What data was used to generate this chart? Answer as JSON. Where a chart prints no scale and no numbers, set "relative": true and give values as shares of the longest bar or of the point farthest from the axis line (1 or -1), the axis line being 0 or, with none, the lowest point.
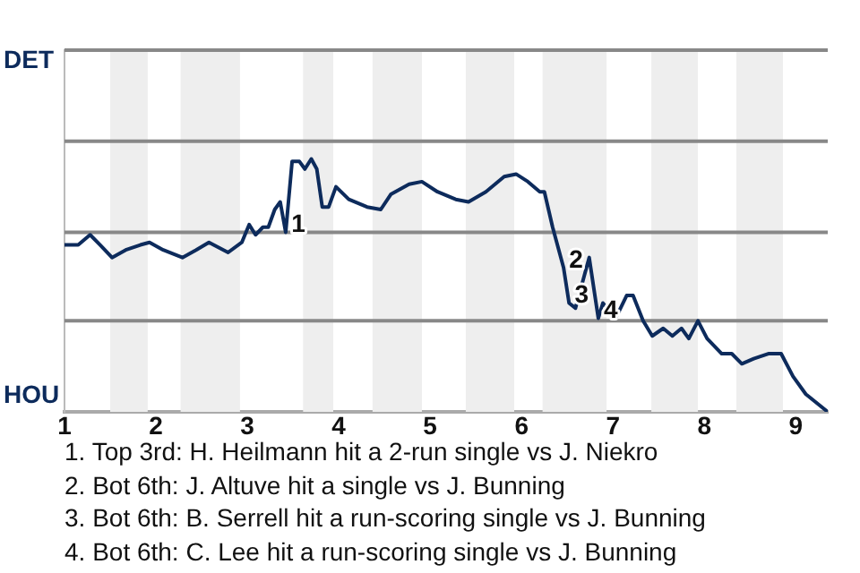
{
  "chart_data": {
    "type": "line",
    "relative": true,
    "x": [
      1,
      1.15,
      1.28,
      1.39,
      1.52,
      1.67,
      1.83,
      1.93,
      2.08,
      2.29,
      2.44,
      2.58,
      2.79,
      2.94,
      3.02,
      3.09,
      3.17,
      3.23,
      3.3,
      3.36,
      3.42,
      3.49,
      3.57,
      3.63,
      3.7,
      3.76,
      3.82,
      3.89,
      3.97,
      4.11,
      4.31,
      4.46,
      4.57,
      4.77,
      4.91,
      5.08,
      5.28,
      5.42,
      5.61,
      5.81,
      5.94,
      6.07,
      6.2,
      6.25,
      6.34,
      6.46,
      6.52,
      6.59,
      6.74,
      6.84,
      6.89,
      7.03,
      7.15,
      7.22,
      7.33,
      7.43,
      7.55,
      7.65,
      7.75,
      7.83,
      7.93,
      8.03,
      8.19,
      8.3,
      8.41,
      8.54,
      8.7,
      8.84,
      8.97,
      9.11,
      9.35
    ],
    "series": [
      {
        "color": "#0d2b5c",
        "values": [
          0.66,
          0.66,
          0.7,
          0.66,
          0.61,
          0.64,
          0.66,
          0.67,
          0.64,
          0.61,
          0.64,
          0.67,
          0.63,
          0.67,
          0.74,
          0.7,
          0.73,
          0.73,
          0.8,
          0.83,
          0.71,
          0.99,
          0.99,
          0.96,
          1,
          0.96,
          0.81,
          0.81,
          0.89,
          0.84,
          0.81,
          0.8,
          0.86,
          0.9,
          0.91,
          0.87,
          0.84,
          0.83,
          0.87,
          0.93,
          0.94,
          0.91,
          0.87,
          0.87,
          0.73,
          0.57,
          0.43,
          0.41,
          0.61,
          0.37,
          0.43,
          0.37,
          0.46,
          0.46,
          0.36,
          0.3,
          0.33,
          0.3,
          0.33,
          0.29,
          0.36,
          0.29,
          0.23,
          0.23,
          0.19,
          0.21,
          0.23,
          0.23,
          0.14,
          0.07,
          0
        ]
      }
    ],
    "xlim": [
      1,
      9.35
    ],
    "xticks": [
      1,
      2,
      3,
      4,
      5,
      6,
      7,
      8,
      9
    ],
    "marker": "none",
    "line_style": "solid",
    "legend": false,
    "ref_lines": [
      {
        "axis": "y",
        "value": 0.36,
        "label": null,
        "color": "#888888"
      },
      {
        "axis": "y",
        "value": 0.71,
        "label": null,
        "color": "#888888"
      },
      {
        "axis": "y",
        "value": 1.07,
        "label": null,
        "color": "#888888"
      },
      {
        "axis": "y",
        "value": 1.43,
        "label": "DET",
        "color": "#888888"
      }
    ],
    "bands": [
      {
        "axis": "x",
        "from": 1.5,
        "to": 1.91,
        "color": "#eeeeee"
      },
      {
        "axis": "x",
        "from": 2.27,
        "to": 2.92,
        "color": "#eeeeee"
      },
      {
        "axis": "x",
        "from": 3.61,
        "to": 3.94,
        "color": "#eeeeee"
      },
      {
        "axis": "x",
        "from": 4.37,
        "to": 4.91,
        "color": "#eeeeee"
      },
      {
        "axis": "x",
        "from": 5.39,
        "to": 5.92,
        "color": "#eeeeee"
      },
      {
        "axis": "x",
        "from": 6.23,
        "to": 6.93,
        "color": "#eeeeee"
      },
      {
        "axis": "x",
        "from": 7.42,
        "to": 7.93,
        "color": "#eeeeee"
      },
      {
        "axis": "x",
        "from": 8.35,
        "to": 8.86,
        "color": "#eeeeee"
      }
    ],
    "annotations": [
      "HOU",
      {
        "text": "1",
        "x": 3.42,
        "y": 0.71
      },
      {
        "text": "2",
        "x": 6.46,
        "y": 0.57
      },
      {
        "text": "3",
        "x": 6.52,
        "y": 0.43
      },
      {
        "text": "4",
        "x": 6.84,
        "y": 0.37
      },
      "1. Top 3rd: H. Heilmann hit a 2-run single vs J. Niekro",
      "2. Bot 6th: J. Altuve hit a single vs J. Bunning",
      "3. Bot 6th: B. Serrell hit a run-scoring single vs J. Bunning",
      "4. Bot 6th: C. Lee hit a run-scoring single vs J. Bunning"
    ]
  }
}
